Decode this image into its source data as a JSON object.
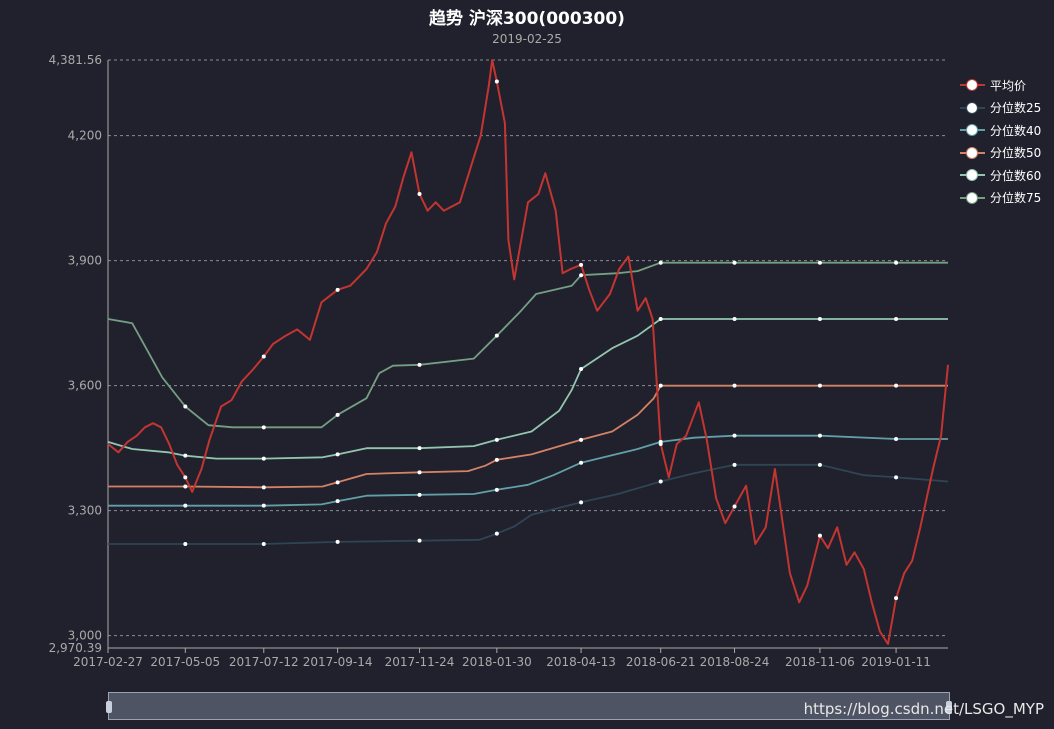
{
  "title": "趋势 沪深300(000300)",
  "subtitle": "2019-02-25",
  "watermark": "https://blog.csdn.net/LSGO_MYP",
  "colors": {
    "background": "#21202d",
    "grid": "#8a8a96",
    "axis_text": "#aaaaaa"
  },
  "legend": [
    {
      "name": "平均价",
      "color": "#c23531"
    },
    {
      "name": "分位数25",
      "color": "#2f4554"
    },
    {
      "name": "分位数40",
      "color": "#61a0a8"
    },
    {
      "name": "分位数50",
      "color": "#d48265"
    },
    {
      "name": "分位数60",
      "color": "#91c7ae"
    },
    {
      "name": "分位数75",
      "color": "#749f83"
    }
  ],
  "chart_data": {
    "type": "line",
    "title": "趋势 沪深300(000300)",
    "subtitle": "2019-02-25",
    "ylim": [
      2970.39,
      4381.56
    ],
    "ytick_values": [
      2970.39,
      3000,
      3300,
      3600,
      3900,
      4200,
      4381.56
    ],
    "ytick_labels": [
      "2,970.39",
      "3,000",
      "3,300",
      "3,600",
      "3,900",
      "4,200",
      "4,381.56"
    ],
    "xlim": [
      "2017-02-27",
      "2019-02-25"
    ],
    "xtick_labels": [
      "2017-02-27",
      "2017-05-05",
      "2017-07-12",
      "2017-09-14",
      "2017-11-24",
      "2018-01-30",
      "2018-04-13",
      "2018-06-21",
      "2018-08-24",
      "2018-11-06",
      "2019-01-11"
    ],
    "grid": true,
    "legend_position": "top-right",
    "series": [
      {
        "name": "平均价",
        "color": "#c23531",
        "points": [
          [
            "2017-02-27",
            3460
          ],
          [
            "2017-03-08",
            3440
          ],
          [
            "2017-03-16",
            3465
          ],
          [
            "2017-03-24",
            3480
          ],
          [
            "2017-03-31",
            3500
          ],
          [
            "2017-04-07",
            3510
          ],
          [
            "2017-04-14",
            3500
          ],
          [
            "2017-04-21",
            3460
          ],
          [
            "2017-04-28",
            3410
          ],
          [
            "2017-05-05",
            3380
          ],
          [
            "2017-05-11",
            3345
          ],
          [
            "2017-05-19",
            3400
          ],
          [
            "2017-05-26",
            3470
          ],
          [
            "2017-06-05",
            3550
          ],
          [
            "2017-06-14",
            3565
          ],
          [
            "2017-06-23",
            3610
          ],
          [
            "2017-07-03",
            3640
          ],
          [
            "2017-07-12",
            3670
          ],
          [
            "2017-07-20",
            3700
          ],
          [
            "2017-07-31",
            3720
          ],
          [
            "2017-08-10",
            3735
          ],
          [
            "2017-08-21",
            3710
          ],
          [
            "2017-08-31",
            3800
          ],
          [
            "2017-09-14",
            3830
          ],
          [
            "2017-09-25",
            3840
          ],
          [
            "2017-10-09",
            3880
          ],
          [
            "2017-10-18",
            3920
          ],
          [
            "2017-10-26",
            3990
          ],
          [
            "2017-11-03",
            4030
          ],
          [
            "2017-11-10",
            4100
          ],
          [
            "2017-11-17",
            4160
          ],
          [
            "2017-11-24",
            4060
          ],
          [
            "2017-12-01",
            4020
          ],
          [
            "2017-12-08",
            4040
          ],
          [
            "2017-12-15",
            4020
          ],
          [
            "2017-12-22",
            4030
          ],
          [
            "2017-12-29",
            4040
          ],
          [
            "2018-01-08",
            4130
          ],
          [
            "2018-01-16",
            4200
          ],
          [
            "2018-01-23",
            4320
          ],
          [
            "2018-01-26",
            4381.56
          ],
          [
            "2018-01-30",
            4330
          ],
          [
            "2018-02-06",
            4230
          ],
          [
            "2018-02-09",
            3950
          ],
          [
            "2018-02-14",
            3855
          ],
          [
            "2018-02-26",
            4040
          ],
          [
            "2018-03-07",
            4060
          ],
          [
            "2018-03-13",
            4110
          ],
          [
            "2018-03-22",
            4020
          ],
          [
            "2018-03-28",
            3870
          ],
          [
            "2018-04-04",
            3880
          ],
          [
            "2018-04-13",
            3890
          ],
          [
            "2018-04-20",
            3830
          ],
          [
            "2018-04-27",
            3780
          ],
          [
            "2018-05-08",
            3820
          ],
          [
            "2018-05-16",
            3880
          ],
          [
            "2018-05-24",
            3910
          ],
          [
            "2018-06-01",
            3780
          ],
          [
            "2018-06-08",
            3810
          ],
          [
            "2018-06-14",
            3760
          ],
          [
            "2018-06-21",
            3460
          ],
          [
            "2018-06-28",
            3380
          ],
          [
            "2018-07-05",
            3460
          ],
          [
            "2018-07-13",
            3480
          ],
          [
            "2018-07-24",
            3560
          ],
          [
            "2018-07-31",
            3470
          ],
          [
            "2018-08-08",
            3330
          ],
          [
            "2018-08-16",
            3270
          ],
          [
            "2018-08-24",
            3310
          ],
          [
            "2018-09-03",
            3360
          ],
          [
            "2018-09-11",
            3220
          ],
          [
            "2018-09-20",
            3260
          ],
          [
            "2018-09-28",
            3400
          ],
          [
            "2018-10-11",
            3150
          ],
          [
            "2018-10-19",
            3080
          ],
          [
            "2018-10-26",
            3120
          ],
          [
            "2018-11-06",
            3240
          ],
          [
            "2018-11-13",
            3210
          ],
          [
            "2018-11-21",
            3260
          ],
          [
            "2018-11-29",
            3170
          ],
          [
            "2018-12-06",
            3200
          ],
          [
            "2018-12-14",
            3160
          ],
          [
            "2018-12-21",
            3080
          ],
          [
            "2018-12-28",
            3010
          ],
          [
            "2019-01-04",
            2980
          ],
          [
            "2019-01-11",
            3090
          ],
          [
            "2019-01-18",
            3150
          ],
          [
            "2019-01-25",
            3180
          ],
          [
            "2019-02-01",
            3260
          ],
          [
            "2019-02-12",
            3400
          ],
          [
            "2019-02-19",
            3480
          ],
          [
            "2019-02-25",
            3650
          ]
        ]
      },
      {
        "name": "分位数25",
        "color": "#2f4554",
        "points": [
          [
            "2017-02-27",
            3220
          ],
          [
            "2017-05-05",
            3220
          ],
          [
            "2017-07-12",
            3220
          ],
          [
            "2017-09-14",
            3225
          ],
          [
            "2017-11-24",
            3228
          ],
          [
            "2018-01-15",
            3230
          ],
          [
            "2018-01-30",
            3245
          ],
          [
            "2018-02-14",
            3262
          ],
          [
            "2018-03-01",
            3290
          ],
          [
            "2018-04-13",
            3320
          ],
          [
            "2018-05-15",
            3340
          ],
          [
            "2018-06-21",
            3370
          ],
          [
            "2018-07-20",
            3390
          ],
          [
            "2018-08-24",
            3410
          ],
          [
            "2018-11-06",
            3410
          ],
          [
            "2018-12-14",
            3385
          ],
          [
            "2019-01-11",
            3380
          ],
          [
            "2019-02-25",
            3370
          ]
        ]
      },
      {
        "name": "分位数40",
        "color": "#61a0a8",
        "points": [
          [
            "2017-02-27",
            3312
          ],
          [
            "2017-05-05",
            3312
          ],
          [
            "2017-07-12",
            3312
          ],
          [
            "2017-08-31",
            3315
          ],
          [
            "2017-09-14",
            3323
          ],
          [
            "2017-10-09",
            3336
          ],
          [
            "2017-11-24",
            3338
          ],
          [
            "2018-01-10",
            3340
          ],
          [
            "2018-01-30",
            3350
          ],
          [
            "2018-02-26",
            3362
          ],
          [
            "2018-03-20",
            3385
          ],
          [
            "2018-04-13",
            3415
          ],
          [
            "2018-05-08",
            3432
          ],
          [
            "2018-06-01",
            3448
          ],
          [
            "2018-06-21",
            3465
          ],
          [
            "2018-07-20",
            3475
          ],
          [
            "2018-08-24",
            3480
          ],
          [
            "2018-11-06",
            3480
          ],
          [
            "2019-01-11",
            3472
          ],
          [
            "2019-02-25",
            3472
          ]
        ]
      },
      {
        "name": "分位数50",
        "color": "#d48265",
        "points": [
          [
            "2017-02-27",
            3358
          ],
          [
            "2017-05-05",
            3358
          ],
          [
            "2017-07-12",
            3356
          ],
          [
            "2017-09-01",
            3358
          ],
          [
            "2017-09-14",
            3368
          ],
          [
            "2017-10-09",
            3388
          ],
          [
            "2017-11-24",
            3392
          ],
          [
            "2018-01-05",
            3395
          ],
          [
            "2018-01-20",
            3408
          ],
          [
            "2018-01-30",
            3422
          ],
          [
            "2018-03-01",
            3435
          ],
          [
            "2018-04-13",
            3470
          ],
          [
            "2018-05-10",
            3490
          ],
          [
            "2018-06-01",
            3530
          ],
          [
            "2018-06-15",
            3570
          ],
          [
            "2018-06-21",
            3600
          ],
          [
            "2018-08-24",
            3600
          ],
          [
            "2018-11-06",
            3600
          ],
          [
            "2019-02-25",
            3600
          ]
        ]
      },
      {
        "name": "分位数60",
        "color": "#91c7ae",
        "points": [
          [
            "2017-02-27",
            3465
          ],
          [
            "2017-03-20",
            3448
          ],
          [
            "2017-04-20",
            3440
          ],
          [
            "2017-05-05",
            3432
          ],
          [
            "2017-06-01",
            3425
          ],
          [
            "2017-07-12",
            3425
          ],
          [
            "2017-09-01",
            3428
          ],
          [
            "2017-09-14",
            3435
          ],
          [
            "2017-10-09",
            3450
          ],
          [
            "2017-11-24",
            3450
          ],
          [
            "2018-01-10",
            3455
          ],
          [
            "2018-01-30",
            3470
          ],
          [
            "2018-03-01",
            3490
          ],
          [
            "2018-03-25",
            3540
          ],
          [
            "2018-04-05",
            3590
          ],
          [
            "2018-04-13",
            3640
          ],
          [
            "2018-05-10",
            3690
          ],
          [
            "2018-06-01",
            3720
          ],
          [
            "2018-06-21",
            3760
          ],
          [
            "2018-08-24",
            3760
          ],
          [
            "2018-11-06",
            3760
          ],
          [
            "2019-02-25",
            3760
          ]
        ]
      },
      {
        "name": "分位数75",
        "color": "#749f83",
        "points": [
          [
            "2017-02-27",
            3760
          ],
          [
            "2017-03-20",
            3750
          ],
          [
            "2017-04-01",
            3690
          ],
          [
            "2017-04-15",
            3620
          ],
          [
            "2017-05-05",
            3550
          ],
          [
            "2017-05-25",
            3505
          ],
          [
            "2017-06-15",
            3500
          ],
          [
            "2017-07-12",
            3500
          ],
          [
            "2017-08-31",
            3500
          ],
          [
            "2017-09-14",
            3530
          ],
          [
            "2017-10-09",
            3570
          ],
          [
            "2017-10-20",
            3630
          ],
          [
            "2017-11-01",
            3648
          ],
          [
            "2017-11-24",
            3650
          ],
          [
            "2018-01-10",
            3665
          ],
          [
            "2018-01-30",
            3720
          ],
          [
            "2018-02-20",
            3780
          ],
          [
            "2018-03-05",
            3820
          ],
          [
            "2018-04-05",
            3840
          ],
          [
            "2018-04-13",
            3865
          ],
          [
            "2018-05-15",
            3870
          ],
          [
            "2018-06-01",
            3875
          ],
          [
            "2018-06-21",
            3895
          ],
          [
            "2018-08-24",
            3895
          ],
          [
            "2018-11-06",
            3895
          ],
          [
            "2019-02-25",
            3895
          ]
        ]
      }
    ],
    "markers": {
      "平均价": [
        "2017-05-05",
        "2017-07-12",
        "2017-09-14",
        "2017-11-24",
        "2018-01-30",
        "2018-04-13",
        "2018-06-21",
        "2018-08-24",
        "2018-11-06",
        "2019-01-11"
      ],
      "分位数25": [
        "2017-05-05",
        "2017-07-12",
        "2017-09-14",
        "2017-11-24",
        "2018-01-30",
        "2018-04-13",
        "2018-06-21",
        "2018-08-24",
        "2018-11-06",
        "2019-01-11"
      ],
      "分位数40": [
        "2017-05-05",
        "2017-07-12",
        "2017-09-14",
        "2017-11-24",
        "2018-01-30",
        "2018-04-13",
        "2018-06-21",
        "2018-08-24",
        "2018-11-06",
        "2019-01-11"
      ],
      "分位数50": [
        "2017-05-05",
        "2017-07-12",
        "2017-09-14",
        "2017-11-24",
        "2018-01-30",
        "2018-04-13",
        "2018-06-21",
        "2018-08-24",
        "2018-11-06",
        "2019-01-11"
      ],
      "分位数60": [
        "2017-05-05",
        "2017-07-12",
        "2017-09-14",
        "2017-11-24",
        "2018-01-30",
        "2018-04-13",
        "2018-06-21",
        "2018-08-24",
        "2018-11-06",
        "2019-01-11"
      ],
      "分位数75": [
        "2017-05-05",
        "2017-07-12",
        "2017-09-14",
        "2017-11-24",
        "2018-01-30",
        "2018-04-13",
        "2018-06-21",
        "2018-08-24",
        "2018-11-06",
        "2019-01-11"
      ]
    }
  }
}
